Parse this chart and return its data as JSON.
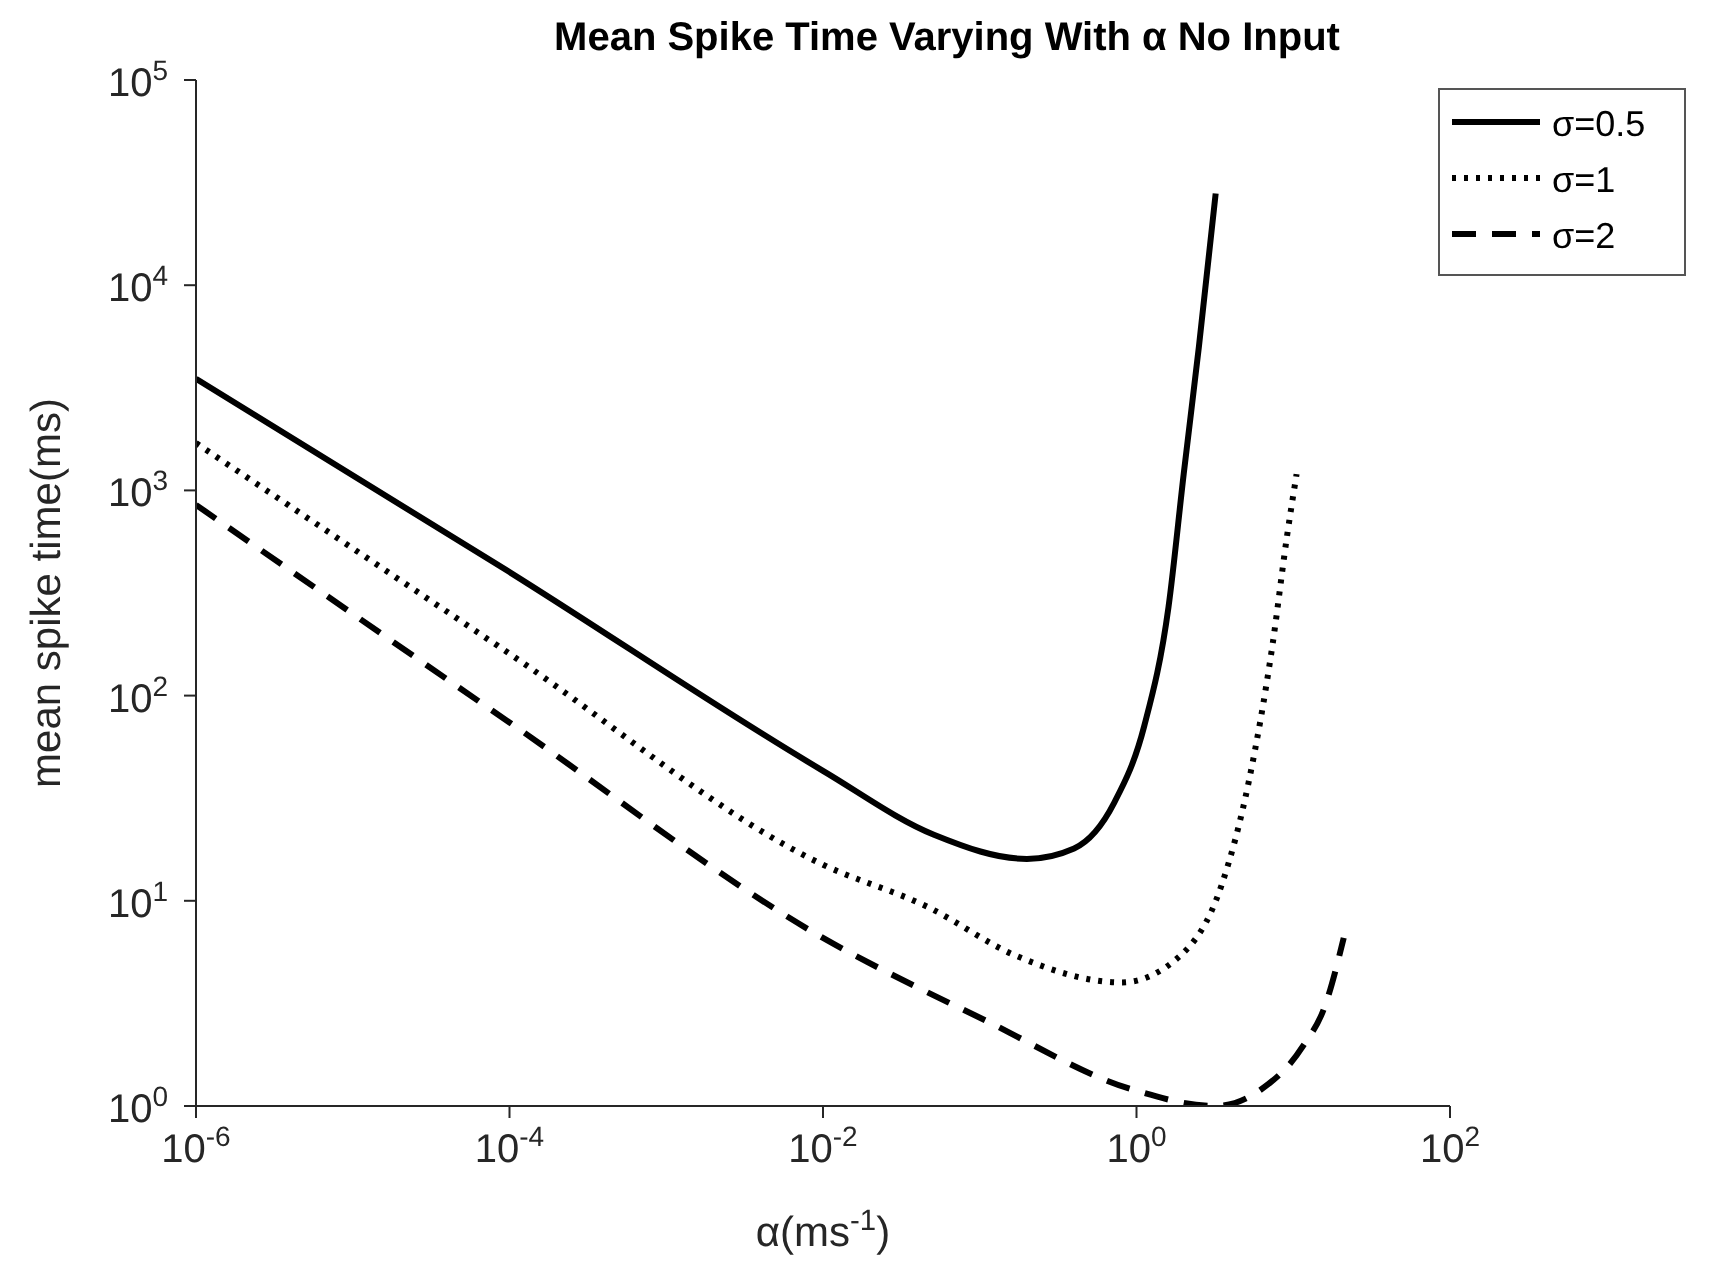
{
  "chart_data": {
    "type": "line",
    "title": "Mean Spike Time Varying With α No Input",
    "xlabel": "α(ms$^{-1}$)",
    "ylabel": "mean spike time(ms)",
    "log": "xy",
    "xlim": [
      1e-06,
      100
    ],
    "ylim": [
      1,
      100000
    ],
    "xticks": [
      {
        "value": 1e-06,
        "label": "10$^{-6}$"
      },
      {
        "value": 0.0001,
        "label": "10$^{-4}$"
      },
      {
        "value": 0.01,
        "label": "10$^{-2}$"
      },
      {
        "value": 1,
        "label": "10$^{0}$"
      },
      {
        "value": 100,
        "label": "10$^{2}$"
      }
    ],
    "yticks": [
      {
        "value": 1,
        "label": "10$^{0}$"
      },
      {
        "value": 10,
        "label": "10$^{1}$"
      },
      {
        "value": 100,
        "label": "10$^{2}$"
      },
      {
        "value": 1000,
        "label": "10$^{3}$"
      },
      {
        "value": 10000,
        "label": "10$^{4}$"
      },
      {
        "value": 100000,
        "label": "10$^{5}$"
      }
    ],
    "legend": "top right",
    "grid": false,
    "marker": "none",
    "series": [
      {
        "name": "σ=0.5",
        "color": "#000000",
        "line_style": "solid",
        "x": [
          1e-06,
          0.0001,
          0.01,
          0.051,
          0.2,
          0.4,
          0.72,
          1.12,
          1.6,
          2.0,
          2.5,
          3.2
        ],
        "values": [
          3500,
          400,
          43,
          21,
          16,
          18,
          30,
          71,
          270,
          1200,
          5000,
          28000
        ]
      },
      {
        "name": "σ=1",
        "color": "#000000",
        "line_style": "dotted",
        "x": [
          1e-06,
          0.0001,
          0.01,
          0.047,
          0.17,
          0.8,
          1.9,
          3.5,
          5.2,
          7.4,
          9.1,
          10.5
        ],
        "values": [
          1700,
          160,
          15,
          9.3,
          5.4,
          4.0,
          5.4,
          12,
          38,
          180,
          590,
          1200
        ]
      },
      {
        "name": "σ=2",
        "color": "#000000",
        "line_style": "dashed",
        "x": [
          1e-06,
          0.0001,
          0.01,
          0.11,
          0.95,
          3.2,
          6.2,
          11.5,
          16,
          21
        ],
        "values": [
          850,
          74,
          6.6,
          2.6,
          1.2,
          1.0,
          1.2,
          1.95,
          3.1,
          6.6
        ]
      }
    ]
  }
}
